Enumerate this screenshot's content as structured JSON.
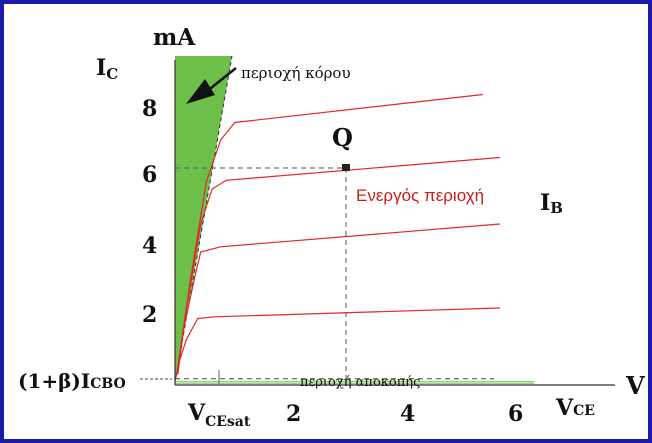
{
  "colors": {
    "border": "#1a1aa8",
    "saturation_fill": "#6cc04a",
    "curve": "#e02828",
    "active_label": "#c81e1e",
    "cutoff_line": "#8fcf7a",
    "axis": "#333333",
    "text": "#111111"
  },
  "labels": {
    "y_unit": "mA",
    "y_axis_I": "I",
    "y_axis_sub": "C",
    "x_unit": "V",
    "x_axis_V": "V",
    "x_axis_sub": "CE",
    "vcesat_V": "V",
    "vcesat_sub": "CEsat",
    "saturation_region": "περιοχή κόρου",
    "active_region": "Ενεργός περιοχή",
    "cutoff_region": "περιοχή αποκοπής",
    "q_point": "Q",
    "ib_I": "I",
    "ib_sub": "B",
    "iceo_prefix": "(1+β)I",
    "iceo_sub": "CBO"
  },
  "chart_data": {
    "type": "line",
    "title": "",
    "xlabel": "VCE",
    "ylabel": "IC",
    "x_unit": "V",
    "y_unit": "mA",
    "xlim": [
      0,
      7.5
    ],
    "ylim": [
      0,
      9.4
    ],
    "x_ticks": [
      "VCEsat",
      "2",
      "4",
      "6"
    ],
    "y_ticks": [
      "2",
      "4",
      "6",
      "8",
      "(1+β)ICBO"
    ],
    "regions": [
      "περιοχή κόρου",
      "Ενεργός περιοχή",
      "περιοχή αποκοπής"
    ],
    "q_point": {
      "label": "Q",
      "vce": 3.0,
      "ic": 6.2
    },
    "collector_curves": [
      {
        "points": [
          [
            0.0,
            0.1
          ],
          [
            0.08,
            0.7
          ],
          [
            0.2,
            1.3
          ],
          [
            0.4,
            1.9
          ],
          [
            0.7,
            1.95
          ],
          [
            5.7,
            2.2
          ]
        ]
      },
      {
        "points": [
          [
            0.05,
            0.3
          ],
          [
            0.15,
            1.6
          ],
          [
            0.35,
            3.1
          ],
          [
            0.45,
            3.8
          ],
          [
            0.8,
            3.95
          ],
          [
            5.7,
            4.6
          ]
        ]
      },
      {
        "points": [
          [
            0.05,
            0.4
          ],
          [
            0.2,
            2.2
          ],
          [
            0.45,
            4.6
          ],
          [
            0.65,
            5.6
          ],
          [
            0.9,
            5.85
          ],
          [
            5.7,
            6.5
          ]
        ]
      },
      {
        "points": [
          [
            0.05,
            0.5
          ],
          [
            0.25,
            2.8
          ],
          [
            0.55,
            5.8
          ],
          [
            0.8,
            7.0
          ],
          [
            1.05,
            7.5
          ],
          [
            5.4,
            8.3
          ]
        ]
      }
    ]
  }
}
